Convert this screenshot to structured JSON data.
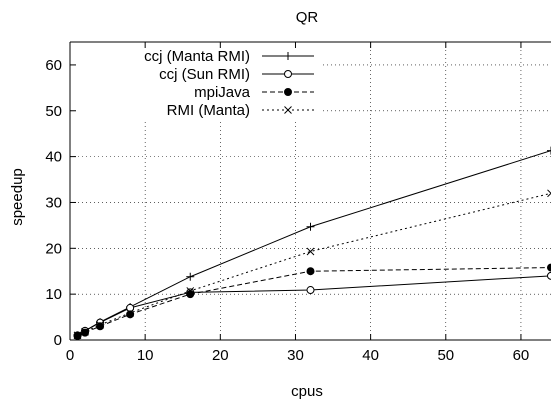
{
  "chart_data": {
    "type": "line",
    "title": "QR",
    "xlabel": "cpus",
    "ylabel": "speedup",
    "xlim": [
      0,
      64
    ],
    "ylim": [
      0,
      65
    ],
    "xticks": [
      0,
      10,
      20,
      30,
      40,
      50,
      60
    ],
    "yticks": [
      0,
      10,
      20,
      30,
      40,
      50,
      60
    ],
    "grid": true,
    "legend_position": "top-left",
    "series": [
      {
        "name": "ccj (Manta RMI)",
        "marker": "plus",
        "dash": "solid",
        "x": [
          1,
          2,
          4,
          8,
          16,
          32,
          64
        ],
        "y": [
          1,
          2,
          3.9,
          7.2,
          13.8,
          24.7,
          41.3
        ]
      },
      {
        "name": "ccj (Sun RMI)",
        "marker": "circle-open",
        "dash": "solid",
        "x": [
          1,
          2,
          4,
          8,
          16,
          32,
          64
        ],
        "y": [
          1,
          2,
          3.8,
          7,
          10.4,
          10.9,
          14
        ]
      },
      {
        "name": "mpiJava",
        "marker": "circle-filled",
        "dash": "dashed",
        "x": [
          1,
          2,
          4,
          8,
          16,
          32,
          64
        ],
        "y": [
          0.9,
          1.6,
          3,
          5.6,
          10,
          15,
          15.8
        ]
      },
      {
        "name": "RMI (Manta)",
        "marker": "cross",
        "dash": "dotted",
        "x": [
          1,
          2,
          4,
          8,
          16,
          32,
          64
        ],
        "y": [
          1,
          1.8,
          3.3,
          5.9,
          10.7,
          19.3,
          32
        ]
      }
    ]
  }
}
